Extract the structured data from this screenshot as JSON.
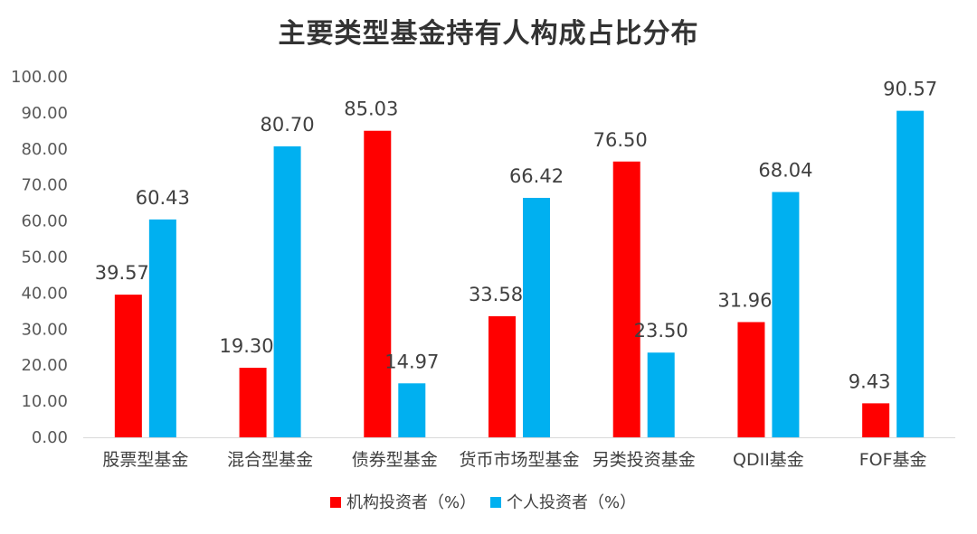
{
  "chart_data": {
    "type": "bar",
    "title": "主要类型基金持有人构成占比分布",
    "categories": [
      "股票型基金",
      "混合型基金",
      "债券型基金",
      "货币市场型基金",
      "另类投资基金",
      "QDII基金",
      "FOF基金"
    ],
    "series": [
      {
        "name": "机构投资者（%）",
        "color": "#ff0000",
        "values": [
          39.57,
          19.3,
          85.03,
          33.58,
          76.5,
          31.96,
          9.43
        ],
        "labels": [
          "39.57",
          "19.30",
          "85.03",
          "33.58",
          "76.50",
          "31.96",
          "9.43"
        ]
      },
      {
        "name": "个人投资者（%）",
        "color": "#00b0f0",
        "values": [
          60.43,
          80.7,
          14.97,
          66.42,
          23.5,
          68.04,
          90.57
        ],
        "labels": [
          "60.43",
          "80.70",
          "14.97",
          "66.42",
          "23.50",
          "68.04",
          "90.57"
        ]
      }
    ],
    "ylim": [
      0,
      100
    ],
    "yticks": [
      "0.00",
      "10.00",
      "20.00",
      "30.00",
      "40.00",
      "50.00",
      "60.00",
      "70.00",
      "80.00",
      "90.00",
      "100.00"
    ],
    "grid": false,
    "legend_position": "bottom"
  }
}
